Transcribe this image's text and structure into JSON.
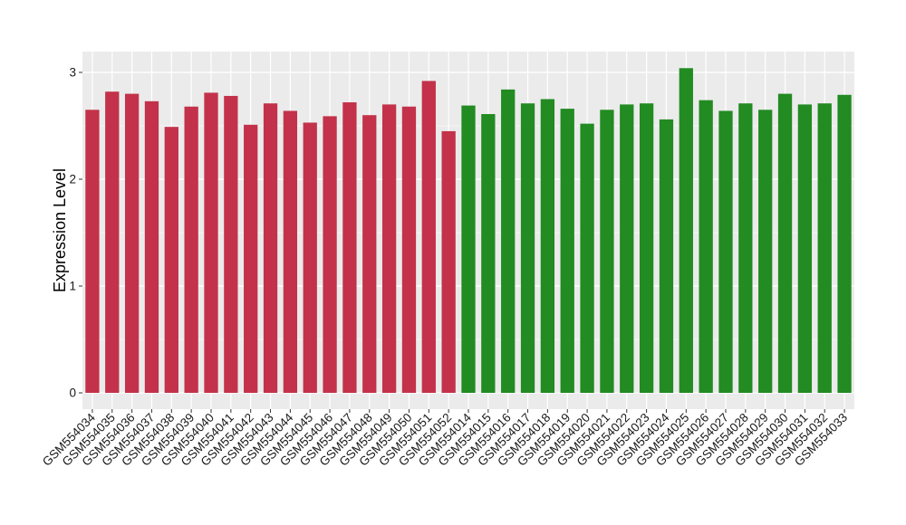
{
  "chart_data": {
    "type": "bar",
    "title": "",
    "xlabel": "",
    "ylabel": "Expression Level",
    "ylim": [
      0,
      3.1
    ],
    "yticks": [
      0,
      1,
      2,
      3
    ],
    "grid": true,
    "legend": "none",
    "background_color": "#ebebeb",
    "grid_color": "#ffffff",
    "categories": [
      "GSM554034",
      "GSM554035",
      "GSM554036",
      "GSM554037",
      "GSM554038",
      "GSM554039",
      "GSM554040",
      "GSM554041",
      "GSM554042",
      "GSM554043",
      "GSM554044",
      "GSM554045",
      "GSM554046",
      "GSM554047",
      "GSM554048",
      "GSM554049",
      "GSM554050",
      "GSM554051",
      "GSM554052",
      "GSM554014",
      "GSM554015",
      "GSM554016",
      "GSM554017",
      "GSM554018",
      "GSM554019",
      "GSM554020",
      "GSM554021",
      "GSM554022",
      "GSM554023",
      "GSM554024",
      "GSM554025",
      "GSM554026",
      "GSM554027",
      "GSM554028",
      "GSM554029",
      "GSM554030",
      "GSM554031",
      "GSM554032",
      "GSM554033"
    ],
    "values": [
      2.65,
      2.82,
      2.8,
      2.73,
      2.49,
      2.68,
      2.81,
      2.78,
      2.51,
      2.71,
      2.64,
      2.53,
      2.59,
      2.72,
      2.6,
      2.7,
      2.68,
      2.92,
      2.45,
      2.69,
      2.61,
      2.84,
      2.71,
      2.75,
      2.66,
      2.52,
      2.65,
      2.7,
      2.71,
      2.56,
      3.04,
      2.74,
      2.64,
      2.71,
      2.65,
      2.8,
      2.7,
      2.71,
      2.79
    ],
    "colors": [
      "#c3324a",
      "#c3324a",
      "#c3324a",
      "#c3324a",
      "#c3324a",
      "#c3324a",
      "#c3324a",
      "#c3324a",
      "#c3324a",
      "#c3324a",
      "#c3324a",
      "#c3324a",
      "#c3324a",
      "#c3324a",
      "#c3324a",
      "#c3324a",
      "#c3324a",
      "#c3324a",
      "#c3324a",
      "#228b22",
      "#228b22",
      "#228b22",
      "#228b22",
      "#228b22",
      "#228b22",
      "#228b22",
      "#228b22",
      "#228b22",
      "#228b22",
      "#228b22",
      "#228b22",
      "#228b22",
      "#228b22",
      "#228b22",
      "#228b22",
      "#228b22",
      "#228b22",
      "#228b22",
      "#228b22"
    ]
  }
}
